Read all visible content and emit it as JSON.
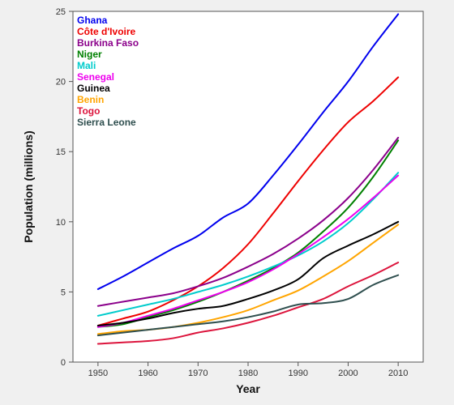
{
  "chart_data": {
    "type": "line",
    "title": "",
    "xlabel": "Year",
    "ylabel": "Population (millions)",
    "xlim": [
      1945,
      2015
    ],
    "ylim": [
      0,
      25
    ],
    "xticks": [
      1950,
      1960,
      1970,
      1980,
      1990,
      2000,
      2010
    ],
    "yticks": [
      0,
      5,
      10,
      15,
      20,
      25
    ],
    "grid": false,
    "legend_position": "top-left",
    "background": "#ffffff",
    "x": [
      1950,
      1955,
      1960,
      1965,
      1970,
      1975,
      1980,
      1985,
      1990,
      1995,
      2000,
      2005,
      2010
    ],
    "series": [
      {
        "name": "Ghana",
        "color": "#0000ee",
        "values": [
          5.2,
          6.1,
          7.1,
          8.1,
          9.0,
          10.3,
          11.3,
          13.3,
          15.5,
          17.8,
          20.0,
          22.5,
          24.8
        ]
      },
      {
        "name": "Côte d'Ivoire",
        "color": "#ee0000",
        "values": [
          2.6,
          3.1,
          3.6,
          4.4,
          5.4,
          6.7,
          8.4,
          10.6,
          12.9,
          15.1,
          17.1,
          18.6,
          20.3
        ]
      },
      {
        "name": "Burkina Faso",
        "color": "#8b008b",
        "values": [
          4.0,
          4.3,
          4.6,
          4.9,
          5.4,
          6.0,
          6.8,
          7.7,
          8.8,
          10.1,
          11.7,
          13.7,
          16.0
        ]
      },
      {
        "name": "Niger",
        "color": "#008000",
        "values": [
          2.5,
          2.7,
          3.2,
          3.7,
          4.3,
          5.0,
          5.8,
          6.7,
          7.8,
          9.3,
          11.0,
          13.2,
          15.8
        ]
      },
      {
        "name": "Mali",
        "color": "#00cccc",
        "values": [
          3.3,
          3.7,
          4.1,
          4.5,
          5.0,
          5.5,
          6.1,
          6.8,
          7.6,
          8.6,
          9.9,
          11.6,
          13.5
        ]
      },
      {
        "name": "Senegal",
        "color": "#ee00ee",
        "values": [
          2.5,
          2.8,
          3.3,
          3.8,
          4.4,
          5.0,
          5.7,
          6.6,
          7.7,
          8.9,
          10.2,
          11.7,
          13.3
        ]
      },
      {
        "name": "Guinea",
        "color": "#000000",
        "values": [
          2.6,
          2.8,
          3.1,
          3.5,
          3.8,
          4.0,
          4.5,
          5.1,
          5.9,
          7.4,
          8.3,
          9.1,
          10.0
        ]
      },
      {
        "name": "Benin",
        "color": "#ffa500",
        "values": [
          2.0,
          2.2,
          2.3,
          2.5,
          2.8,
          3.2,
          3.7,
          4.4,
          5.1,
          6.1,
          7.2,
          8.5,
          9.8
        ]
      },
      {
        "name": "Togo",
        "color": "#dc143c",
        "values": [
          1.3,
          1.4,
          1.5,
          1.7,
          2.1,
          2.4,
          2.8,
          3.3,
          3.9,
          4.5,
          5.4,
          6.2,
          7.1
        ]
      },
      {
        "name": "Sierra Leone",
        "color": "#2f4f4f",
        "values": [
          1.9,
          2.1,
          2.3,
          2.5,
          2.7,
          2.9,
          3.2,
          3.6,
          4.1,
          4.2,
          4.5,
          5.5,
          6.2
        ]
      }
    ]
  }
}
